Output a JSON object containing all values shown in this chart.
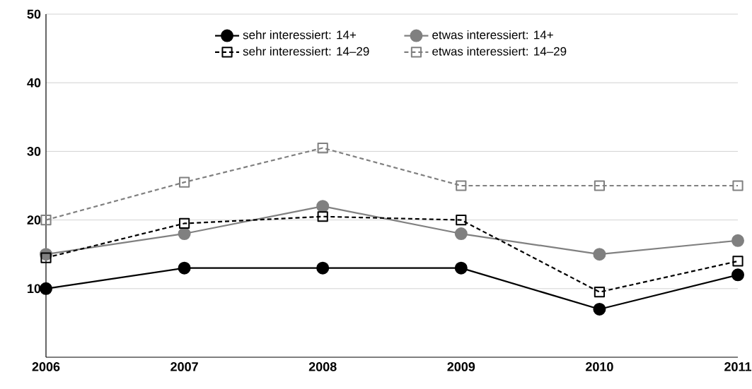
{
  "chart_data": {
    "type": "line",
    "categories": [
      "2006",
      "2007",
      "2008",
      "2009",
      "2010",
      "2011"
    ],
    "series": [
      {
        "name": "sehr interessiert: 14+",
        "color": "#000000",
        "marker": "circle",
        "line_style": "solid",
        "values": [
          10,
          13,
          13,
          13,
          7,
          12
        ]
      },
      {
        "name": "etwas interessiert: 14+",
        "color": "#808080",
        "marker": "circle",
        "line_style": "solid",
        "values": [
          15,
          18,
          22,
          18,
          15,
          17
        ]
      },
      {
        "name": "sehr interessiert: 14–29",
        "color": "#000000",
        "marker": "square",
        "line_style": "dashed",
        "values": [
          14.5,
          19.5,
          20.5,
          20,
          9.5,
          14
        ]
      },
      {
        "name": "etwas interessiert: 14–29",
        "color": "#808080",
        "marker": "square",
        "line_style": "dashed",
        "values": [
          20,
          25.5,
          30.5,
          25,
          25,
          25
        ]
      }
    ],
    "ylim": [
      0,
      50
    ],
    "yticks": [
      10,
      20,
      30,
      40,
      50
    ],
    "grid": "y",
    "legend": "top"
  }
}
